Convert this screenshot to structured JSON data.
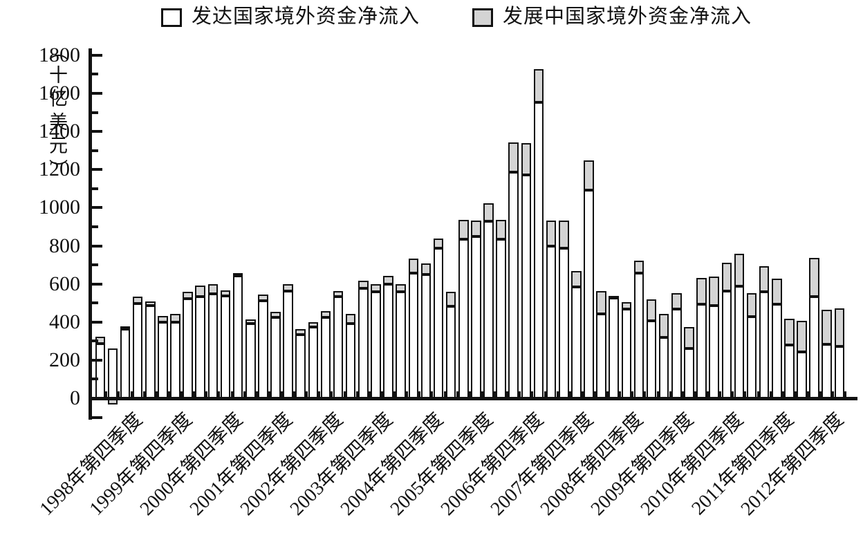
{
  "legend": {
    "items": [
      {
        "label": "发达国家境外资金净流入",
        "swatch": "developed",
        "color": "#ffffff"
      },
      {
        "label": "发展中国家境外资金净流入",
        "swatch": "developing",
        "color": "#d4d4d4"
      }
    ]
  },
  "y_axis": {
    "unit_label": "（十亿美元）",
    "tick_values": [
      0,
      200,
      400,
      600,
      800,
      1000,
      1200,
      1400,
      1600,
      1800
    ],
    "minor_step": 100,
    "min": -100,
    "max": 1800
  },
  "x_axis": {
    "tick_labels": [
      "1998年第四季度",
      "1999年第四季度",
      "2000年第四季度",
      "2001年第四季度",
      "2002年第四季度",
      "2003年第四季度",
      "2004年第四季度",
      "2005年第四季度",
      "2006年第四季度",
      "2007年第四季度",
      "2008年第四季度",
      "2009年第四季度",
      "2010年第四季度",
      "2011年第四季度",
      "2012年第四季度"
    ],
    "label_every_n_bars": 4
  },
  "colors": {
    "developed_fill": "#ffffff",
    "developing_fill": "#d4d4d4",
    "axis_and_border": "#111111",
    "background": "#ffffff"
  },
  "chart_data": {
    "type": "bar",
    "stacked": true,
    "title": "",
    "ylabel": "（十亿美元）",
    "xlabel": "",
    "ylim": [
      -100,
      1800
    ],
    "grid": false,
    "legend_position": "top-center",
    "categories": [
      "1998Q1",
      "1998Q2",
      "1998Q3",
      "1998Q4",
      "1999Q1",
      "1999Q2",
      "1999Q3",
      "1999Q4",
      "2000Q1",
      "2000Q2",
      "2000Q3",
      "2000Q4",
      "2001Q1",
      "2001Q2",
      "2001Q3",
      "2001Q4",
      "2002Q1",
      "2002Q2",
      "2002Q3",
      "2002Q4",
      "2003Q1",
      "2003Q2",
      "2003Q3",
      "2003Q4",
      "2004Q1",
      "2004Q2",
      "2004Q3",
      "2004Q4",
      "2005Q1",
      "2005Q2",
      "2005Q3",
      "2005Q4",
      "2006Q1",
      "2006Q2",
      "2006Q3",
      "2006Q4",
      "2007Q1",
      "2007Q2",
      "2007Q3",
      "2007Q4",
      "2008Q1",
      "2008Q2",
      "2008Q3",
      "2008Q4",
      "2009Q1",
      "2009Q2",
      "2009Q3",
      "2009Q4",
      "2010Q1",
      "2010Q2",
      "2010Q3",
      "2010Q4",
      "2011Q1",
      "2011Q2",
      "2011Q3",
      "2011Q4",
      "2012Q1",
      "2012Q2",
      "2012Q3",
      "2012Q4"
    ],
    "series": [
      {
        "name": "发达国家境外资金净流入",
        "values": [
          295,
          270,
          370,
          505,
          495,
          405,
          405,
          530,
          540,
          555,
          545,
          650,
          400,
          520,
          430,
          570,
          340,
          380,
          430,
          540,
          400,
          585,
          565,
          605,
          565,
          665,
          655,
          795,
          490,
          840,
          855,
          935,
          840,
          1195,
          1180,
          1560,
          805,
          795,
          590,
          1100,
          450,
          535,
          475,
          665,
          415,
          325,
          475,
          270,
          500,
          495,
          570,
          595,
          435,
          565,
          500,
          285,
          250,
          540,
          290,
          280
        ]
      },
      {
        "name": "发展中国家境外资金净流入",
        "values": [
          35,
          -25,
          15,
          35,
          20,
          35,
          45,
          35,
          60,
          50,
          30,
          15,
          20,
          30,
          30,
          35,
          30,
          25,
          35,
          30,
          50,
          40,
          40,
          45,
          40,
          75,
          60,
          50,
          75,
          105,
          85,
          95,
          105,
          155,
          165,
          175,
          135,
          145,
          85,
          155,
          120,
          10,
          35,
          65,
          110,
          125,
          85,
          110,
          140,
          150,
          150,
          170,
          125,
          135,
          135,
          140,
          165,
          205,
          180,
          200
        ]
      }
    ]
  }
}
